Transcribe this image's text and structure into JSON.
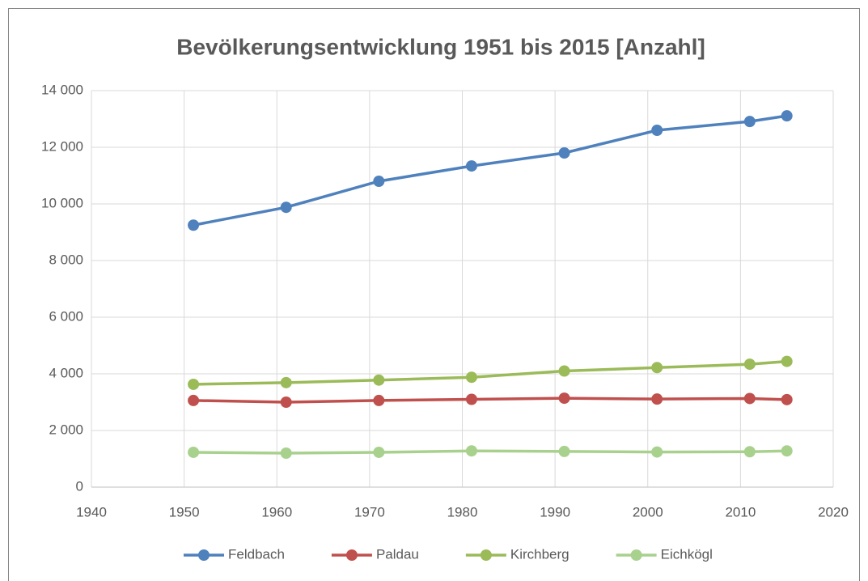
{
  "chart_data": {
    "type": "line",
    "title": "Bevölkerungsentwicklung 1951 bis 2015 [Anzahl]",
    "x": [
      1951,
      1961,
      1971,
      1981,
      1991,
      2001,
      2011,
      2015
    ],
    "series": [
      {
        "name": "Feldbach",
        "color": "#4f81bd",
        "values": [
          9250,
          9880,
          10800,
          11340,
          11800,
          12600,
          12910,
          13110
        ]
      },
      {
        "name": "Paldau",
        "color": "#c0504d",
        "values": [
          3060,
          3000,
          3060,
          3100,
          3140,
          3110,
          3130,
          3090
        ]
      },
      {
        "name": "Kirchberg",
        "color": "#9bbb59",
        "values": [
          3630,
          3690,
          3780,
          3880,
          4100,
          4220,
          4340,
          4440
        ]
      },
      {
        "name": "Eichkögl",
        "color": "#a9d18e",
        "values": [
          1230,
          1200,
          1230,
          1280,
          1260,
          1240,
          1250,
          1280
        ]
      }
    ],
    "xlim": [
      1940,
      2020
    ],
    "xticks": [
      1940,
      1950,
      1960,
      1970,
      1980,
      1990,
      2000,
      2010,
      2020
    ],
    "ylim": [
      0,
      14000
    ],
    "yticks": [
      0,
      {
        "value": 2000,
        "label": "2 000"
      },
      {
        "value": 4000,
        "label": "4 000"
      },
      {
        "value": 6000,
        "label": "6 000"
      },
      {
        "value": 8000,
        "label": "8 000"
      },
      {
        "value": 10000,
        "label": "10 000"
      },
      {
        "value": 12000,
        "label": "12 000"
      },
      {
        "value": 14000,
        "label": "14 000"
      }
    ],
    "grid": true,
    "legend": "bottom"
  }
}
